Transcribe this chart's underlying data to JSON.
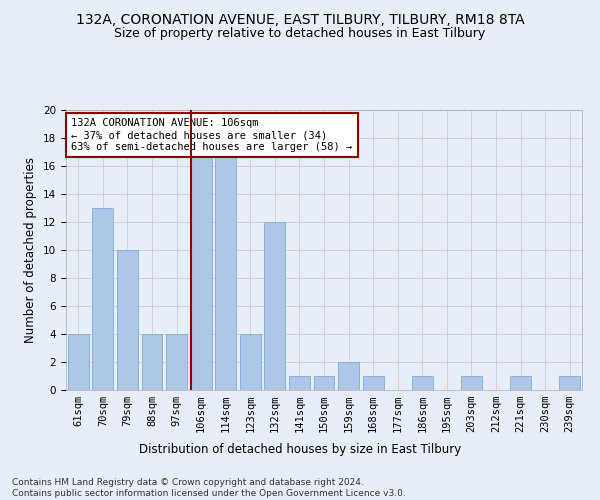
{
  "title": "132A, CORONATION AVENUE, EAST TILBURY, TILBURY, RM18 8TA",
  "subtitle": "Size of property relative to detached houses in East Tilbury",
  "xlabel": "Distribution of detached houses by size in East Tilbury",
  "ylabel": "Number of detached properties",
  "categories": [
    "61sqm",
    "70sqm",
    "79sqm",
    "88sqm",
    "97sqm",
    "106sqm",
    "114sqm",
    "123sqm",
    "132sqm",
    "141sqm",
    "150sqm",
    "159sqm",
    "168sqm",
    "177sqm",
    "186sqm",
    "195sqm",
    "203sqm",
    "212sqm",
    "221sqm",
    "230sqm",
    "239sqm"
  ],
  "values": [
    4,
    13,
    10,
    4,
    4,
    17,
    17,
    4,
    12,
    1,
    1,
    2,
    1,
    0,
    1,
    0,
    1,
    0,
    1,
    0,
    1
  ],
  "bar_color": "#aec6e8",
  "bar_edge_color": "#7aadd4",
  "property_line_color": "#8b0000",
  "annotation_text": "132A CORONATION AVENUE: 106sqm\n← 37% of detached houses are smaller (34)\n63% of semi-detached houses are larger (58) →",
  "annotation_box_color": "#ffffff",
  "annotation_box_edge_color": "#8b0000",
  "ylim": [
    0,
    20
  ],
  "yticks": [
    0,
    2,
    4,
    6,
    8,
    10,
    12,
    14,
    16,
    18,
    20
  ],
  "grid_color": "#cccccc",
  "bg_color": "#e8eef7",
  "footer_text": "Contains HM Land Registry data © Crown copyright and database right 2024.\nContains public sector information licensed under the Open Government Licence v3.0.",
  "title_fontsize": 10,
  "subtitle_fontsize": 9,
  "xlabel_fontsize": 8.5,
  "ylabel_fontsize": 8.5,
  "tick_fontsize": 7.5,
  "annotation_fontsize": 7.5,
  "footer_fontsize": 6.5
}
